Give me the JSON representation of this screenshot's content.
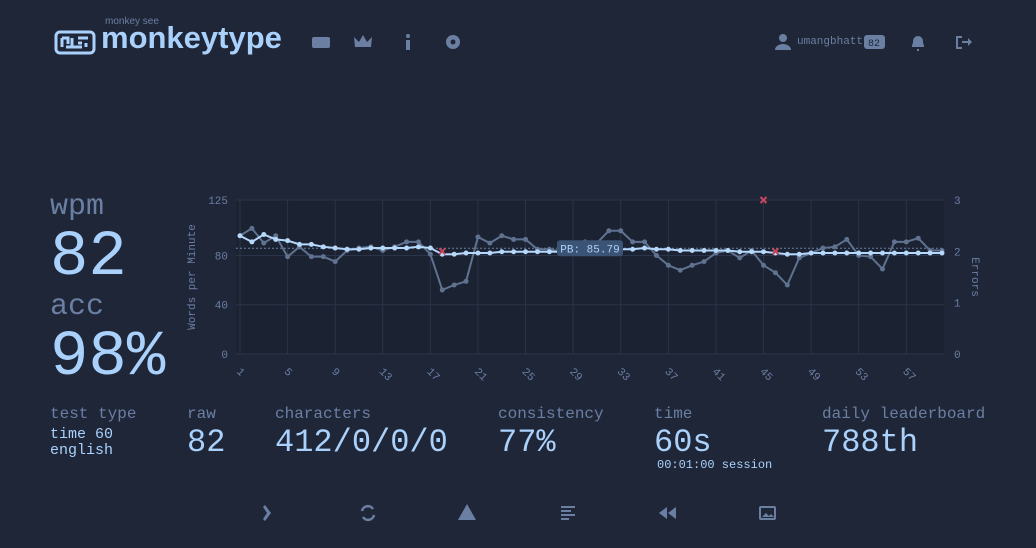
{
  "header": {
    "logo_top": "monkey see",
    "logo": "monkeytype",
    "username": "umangbhatt",
    "level": "82"
  },
  "stats": {
    "wpm_label": "wpm",
    "wpm": "82",
    "acc_label": "acc",
    "acc": "98%"
  },
  "details": {
    "test_type_label": "test type",
    "test_type": "time 60",
    "language": "english",
    "raw_label": "raw",
    "raw": "82",
    "characters_label": "characters",
    "characters": "412/0/0/0",
    "consistency_label": "consistency",
    "consistency": "77%",
    "time_label": "time",
    "time": "60s",
    "session": "00:01:00 session",
    "leaderboard_label": "daily leaderboard",
    "leaderboard": "788th"
  },
  "chart_data": {
    "type": "line",
    "ylabel": "Words per Minute",
    "y2label": "Errors",
    "x": [
      1,
      2,
      3,
      4,
      5,
      6,
      7,
      8,
      9,
      10,
      11,
      12,
      13,
      14,
      15,
      16,
      17,
      18,
      19,
      20,
      21,
      22,
      23,
      24,
      25,
      26,
      27,
      28,
      29,
      30,
      31,
      32,
      33,
      34,
      35,
      36,
      37,
      38,
      39,
      40,
      41,
      42,
      43,
      44,
      45,
      46,
      47,
      48,
      49,
      50,
      51,
      52,
      53,
      54,
      55,
      56,
      57,
      58,
      59,
      60
    ],
    "series": [
      {
        "color": "#5f7290",
        "values": [
          96,
          102,
          90,
          96,
          79,
          87,
          79,
          79,
          75,
          84,
          86,
          87,
          84,
          87,
          91,
          91,
          81,
          52,
          56,
          59,
          95,
          90,
          96,
          93,
          93,
          85,
          85,
          83,
          84,
          91,
          90,
          100,
          100,
          91,
          91,
          80,
          72,
          68,
          72,
          75,
          82,
          84,
          78,
          84,
          72,
          66,
          56,
          78,
          82,
          86,
          87,
          93,
          80,
          79,
          69,
          91,
          91,
          94,
          84,
          84
        ]
      },
      {
        "color": "#b5d8fb",
        "values": [
          96,
          91,
          97,
          93,
          92,
          89,
          89,
          87,
          86,
          85,
          85,
          86,
          86,
          86,
          86,
          87,
          86,
          81,
          81,
          82,
          82,
          82,
          83,
          83,
          83,
          83,
          83,
          83,
          84,
          84,
          84,
          85,
          85,
          85,
          86,
          85,
          85,
          84,
          84,
          84,
          84,
          84,
          83,
          83,
          83,
          82,
          81,
          81,
          82,
          82,
          82,
          82,
          82,
          82,
          82,
          82,
          82,
          82,
          82,
          82
        ]
      },
      {
        "color": "#c9455d",
        "axis": "y2",
        "marker": "x",
        "x": [
          18,
          45,
          46
        ],
        "values": [
          2,
          3,
          2
        ]
      }
    ],
    "xlim": [
      1,
      60
    ],
    "xticks": [
      1,
      5,
      9,
      13,
      17,
      21,
      25,
      29,
      33,
      37,
      41,
      45,
      49,
      53,
      57
    ],
    "ylim": [
      0,
      125
    ],
    "yticks": [
      0,
      40,
      80,
      125
    ],
    "y2lim": [
      0,
      3
    ],
    "y2ticks": [
      0,
      1,
      2,
      3
    ],
    "grid": true,
    "annotations": [
      {
        "text": "PB: 85.79",
        "y": 85.79
      }
    ]
  }
}
